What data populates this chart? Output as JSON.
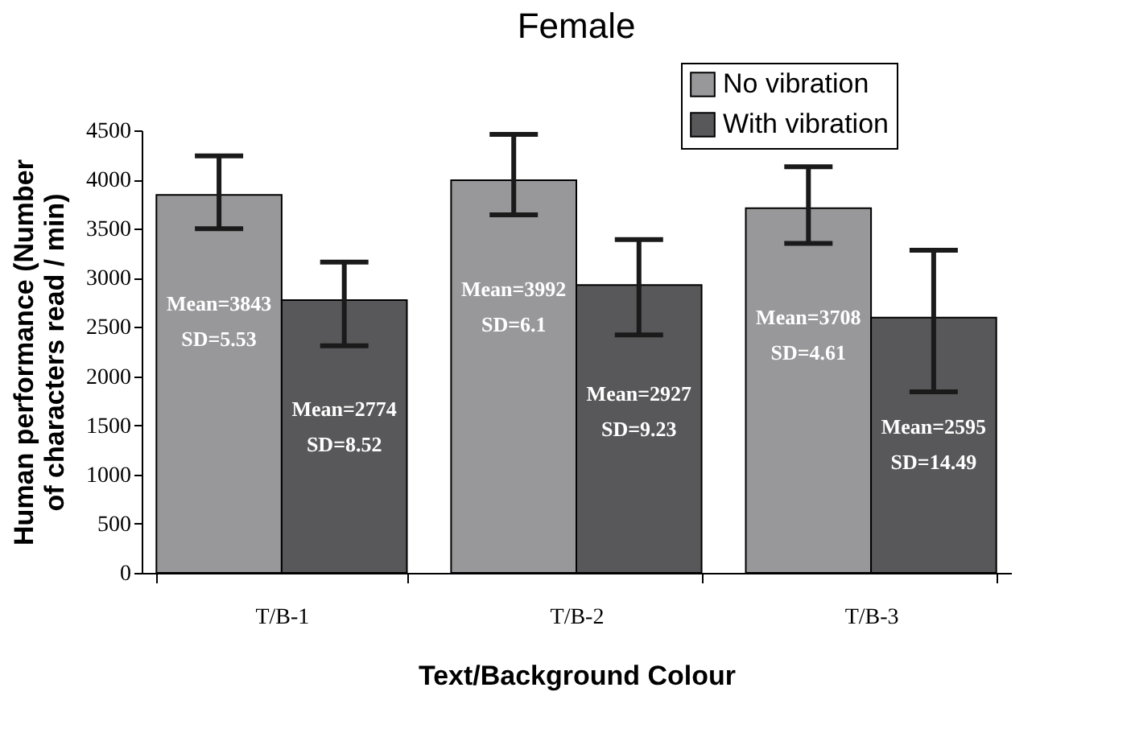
{
  "chart_data": {
    "type": "bar",
    "title": "Female",
    "xlabel": "Text/Background Colour",
    "ylabel": "Human performance (Number\nof characters read / min)",
    "categories": [
      "T/B-1",
      "T/B-2",
      "T/B-3"
    ],
    "series": [
      {
        "name": "No vibration",
        "color": "#98989a",
        "values": [
          3843,
          3992,
          3708
        ],
        "errors": [
          [
            3500,
            4240
          ],
          [
            3640,
            4460
          ],
          [
            3350,
            4130
          ]
        ],
        "value_labels": [
          "Mean=3843\nSD=5.53",
          "Mean=3992\nSD=6.1",
          "Mean=3708\nSD=4.61"
        ]
      },
      {
        "name": "With vibration",
        "color": "#58585a",
        "values": [
          2774,
          2927,
          2595
        ],
        "errors": [
          [
            2310,
            3160
          ],
          [
            2420,
            3390
          ],
          [
            1840,
            3280
          ]
        ],
        "value_labels": [
          "Mean=2774\nSD=8.52",
          "Mean=2927\nSD=9.23",
          "Mean=2595\nSD=14.49"
        ]
      }
    ],
    "ylim": [
      0,
      4500
    ],
    "yticks": [
      0,
      500,
      1000,
      1500,
      2000,
      2500,
      3000,
      3500,
      4000,
      4500
    ],
    "grid": false,
    "legend": "top right"
  }
}
